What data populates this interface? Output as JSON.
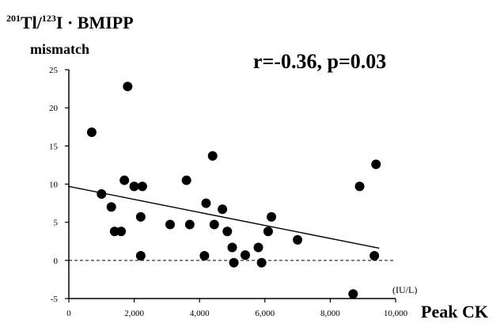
{
  "chart_data": {
    "type": "scatter",
    "title_parts": {
      "sup1": "201",
      "t1": "Tl/",
      "sup2": "123",
      "t2": "I · BMIPP"
    },
    "ylabel": "mismatch",
    "xlabel": "Peak CK",
    "unit_label": "(IU/L)",
    "annotation": "r=-0.36, p=0.03",
    "xlim": [
      0,
      10000
    ],
    "ylim": [
      -5,
      25
    ],
    "x_ticks": [
      0,
      2000,
      4000,
      6000,
      8000,
      10000
    ],
    "x_tick_labels": [
      "0",
      "2,000",
      "4,000",
      "6,000",
      "8,000",
      "10,000"
    ],
    "y_ticks": [
      -5,
      0,
      5,
      10,
      15,
      20,
      25
    ],
    "y_tick_labels": [
      "-5",
      "0",
      "5",
      "10",
      "15",
      "20",
      "25"
    ],
    "reference_line_y": 0,
    "regression_line": {
      "x": [
        0,
        9500
      ],
      "y": [
        9.7,
        1.6
      ]
    },
    "points": [
      {
        "x": 700,
        "y": 16.8
      },
      {
        "x": 1000,
        "y": 8.7
      },
      {
        "x": 1300,
        "y": 7.0
      },
      {
        "x": 1400,
        "y": 3.8
      },
      {
        "x": 1600,
        "y": 3.8
      },
      {
        "x": 1700,
        "y": 10.5
      },
      {
        "x": 1800,
        "y": 22.8
      },
      {
        "x": 2000,
        "y": 9.7
      },
      {
        "x": 2250,
        "y": 9.7
      },
      {
        "x": 2200,
        "y": 5.7
      },
      {
        "x": 2200,
        "y": 0.6
      },
      {
        "x": 3100,
        "y": 4.7
      },
      {
        "x": 3600,
        "y": 10.5
      },
      {
        "x": 3700,
        "y": 4.7
      },
      {
        "x": 4150,
        "y": 0.6
      },
      {
        "x": 4200,
        "y": 7.5
      },
      {
        "x": 4400,
        "y": 13.7
      },
      {
        "x": 4450,
        "y": 4.7
      },
      {
        "x": 4700,
        "y": 6.7
      },
      {
        "x": 4850,
        "y": 3.8
      },
      {
        "x": 5000,
        "y": 1.7
      },
      {
        "x": 5050,
        "y": -0.3
      },
      {
        "x": 5400,
        "y": 0.7
      },
      {
        "x": 5800,
        "y": 1.7
      },
      {
        "x": 5900,
        "y": -0.3
      },
      {
        "x": 6100,
        "y": 3.8
      },
      {
        "x": 6200,
        "y": 5.7
      },
      {
        "x": 7000,
        "y": 2.7
      },
      {
        "x": 8700,
        "y": -4.4
      },
      {
        "x": 8900,
        "y": 9.7
      },
      {
        "x": 9350,
        "y": 0.6
      },
      {
        "x": 9400,
        "y": 12.6
      }
    ]
  }
}
